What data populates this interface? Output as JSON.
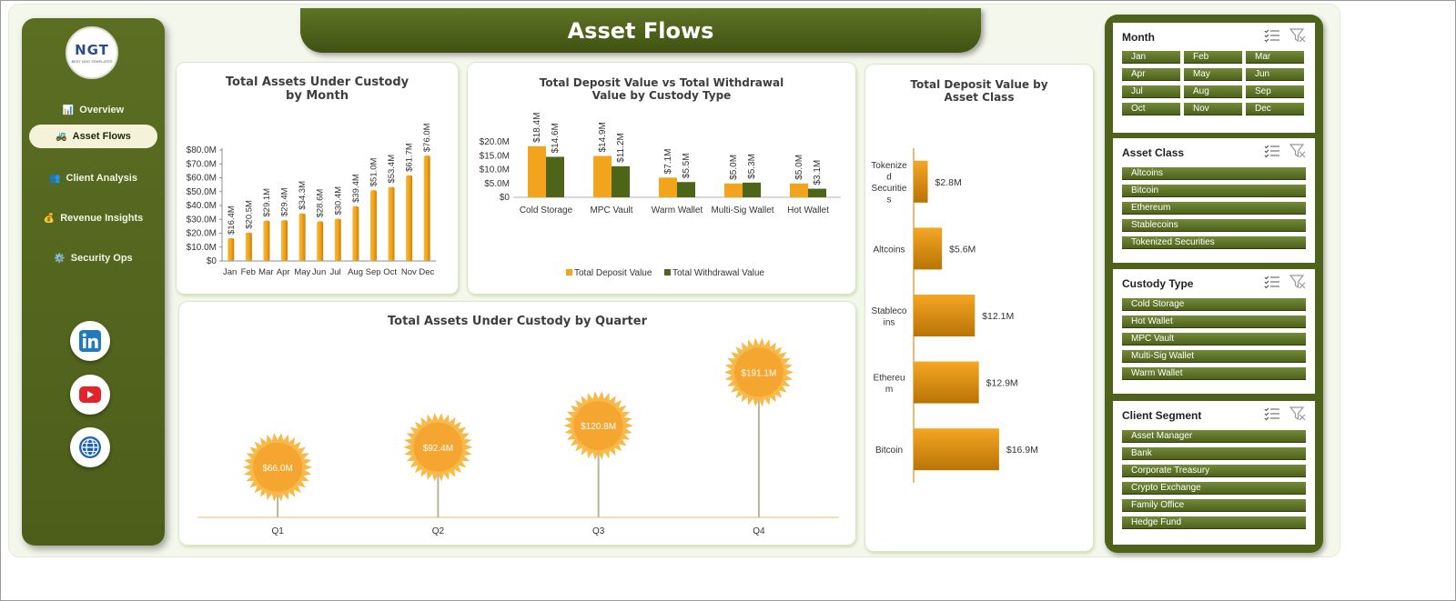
{
  "page_title": "Asset Flows",
  "sidebar": {
    "logo_text": "NGT",
    "logo_subtext": "BEST NGO TEMPLATES",
    "nav": [
      {
        "label": "Overview",
        "icon": "📊"
      },
      {
        "label": "Asset Flows",
        "icon": "🚜"
      },
      {
        "label": "Client Analysis",
        "icon": "👥"
      },
      {
        "label": "Revenue Insights",
        "icon": "💰"
      },
      {
        "label": "Security Ops",
        "icon": "⚙️"
      }
    ],
    "active": "Asset Flows",
    "social": [
      "linkedin-icon",
      "youtube-icon",
      "globe-icon"
    ]
  },
  "colors": {
    "brand": "#556b1f",
    "bar_orange": "#f2a41c",
    "bar_green": "#4e6419",
    "title_text": "#3e3e3e"
  },
  "charts": {
    "monthly": {
      "title": "Total Assets Under Custody by Month"
    },
    "deposit_withdrawal": {
      "title": "Total Deposit Value vs Total Withdrawal Value by Custody Type"
    },
    "asset_class": {
      "title": "Total Deposit Value by Asset Class"
    },
    "quarterly": {
      "title": "Total Assets Under Custody by Quarter"
    }
  },
  "chart_data": [
    {
      "type": "bar",
      "title": "Total Assets Under Custody by Month",
      "categories": [
        "Jan",
        "Feb",
        "Mar",
        "Apr",
        "May",
        "Jun",
        "Jul",
        "Aug",
        "Sep",
        "Oct",
        "Nov",
        "Dec"
      ],
      "values": [
        16.4,
        20.5,
        29.1,
        29.4,
        34.3,
        28.6,
        30.4,
        39.4,
        51.0,
        53.4,
        61.7,
        76.0
      ],
      "labels": [
        "$16.4M",
        "$20.5M",
        "$29.1M",
        "$29.4M",
        "$34.3M",
        "$28.6M",
        "$30.4M",
        "$39.4M",
        "$51.0M",
        "$53.4M",
        "$61.7M",
        "$76.0M"
      ],
      "yticks": [
        "$0",
        "$10.0M",
        "$20.0M",
        "$30.0M",
        "$40.0M",
        "$50.0M",
        "$60.0M",
        "$70.0M",
        "$80.0M"
      ],
      "ylim": [
        0,
        80
      ]
    },
    {
      "type": "bar",
      "title": "Total Deposit Value vs Total Withdrawal Value by Custody Type",
      "categories": [
        "Cold Storage",
        "MPC Vault",
        "Warm Wallet",
        "Multi-Sig Wallet",
        "Hot Wallet"
      ],
      "series": [
        {
          "name": "Total Deposit Value",
          "values": [
            18.4,
            14.9,
            7.1,
            5.0,
            5.0
          ],
          "labels": [
            "$18.4M",
            "$14.9M",
            "$7.1M",
            "$5.0M",
            "$5.0M"
          ]
        },
        {
          "name": "Total Withdrawal Value",
          "values": [
            14.6,
            11.2,
            5.5,
            5.3,
            3.1
          ],
          "labels": [
            "$14.6M",
            "$11.2M",
            "$5.5M",
            "$5.3M",
            "$3.1M"
          ]
        }
      ],
      "yticks": [
        "$0",
        "$5.0M",
        "$10.0M",
        "$15.0M",
        "$20.0M"
      ],
      "ylim": [
        0,
        20
      ],
      "legend": "bottom"
    },
    {
      "type": "bar",
      "orientation": "horizontal",
      "title": "Total Deposit Value by Asset Class",
      "categories": [
        "Tokenized Securities",
        "Altcoins",
        "Stablecoins",
        "Ethereum",
        "Bitcoin"
      ],
      "category_lines": [
        [
          "Tokenize",
          "d",
          "Securitie",
          "s"
        ],
        [
          "Altcoins"
        ],
        [
          "Stableco",
          "ins"
        ],
        [
          "Ethereu",
          "m"
        ],
        [
          "Bitcoin"
        ]
      ],
      "values": [
        2.8,
        5.6,
        12.1,
        12.9,
        16.9
      ],
      "labels": [
        "$2.8M",
        "$5.6M",
        "$12.1M",
        "$12.9M",
        "$16.9M"
      ]
    },
    {
      "type": "scatter",
      "style": "lollipop-burst",
      "title": "Total Assets Under Custody by Quarter",
      "categories": [
        "Q1",
        "Q2",
        "Q3",
        "Q4"
      ],
      "values": [
        66.0,
        92.4,
        120.8,
        191.1
      ],
      "labels": [
        "$66.0M",
        "$92.4M",
        "$120.8M",
        "$191.1M"
      ]
    }
  ],
  "slicers": [
    {
      "title": "Month",
      "cols": 3,
      "items": [
        "Jan",
        "Feb",
        "Mar",
        "Apr",
        "May",
        "Jun",
        "Jul",
        "Aug",
        "Sep",
        "Oct",
        "Nov",
        "Dec"
      ]
    },
    {
      "title": "Asset Class",
      "cols": 1,
      "items": [
        "Altcoins",
        "Bitcoin",
        "Ethereum",
        "Stablecoins",
        "Tokenized Securities"
      ]
    },
    {
      "title": "Custody Type",
      "cols": 1,
      "items": [
        "Cold Storage",
        "Hot Wallet",
        "MPC Vault",
        "Multi-Sig Wallet",
        "Warm Wallet"
      ]
    },
    {
      "title": "Client Segment",
      "cols": 1,
      "items": [
        "Asset Manager",
        "Bank",
        "Corporate Treasury",
        "Crypto Exchange",
        "Family Office",
        "Hedge Fund"
      ]
    }
  ]
}
